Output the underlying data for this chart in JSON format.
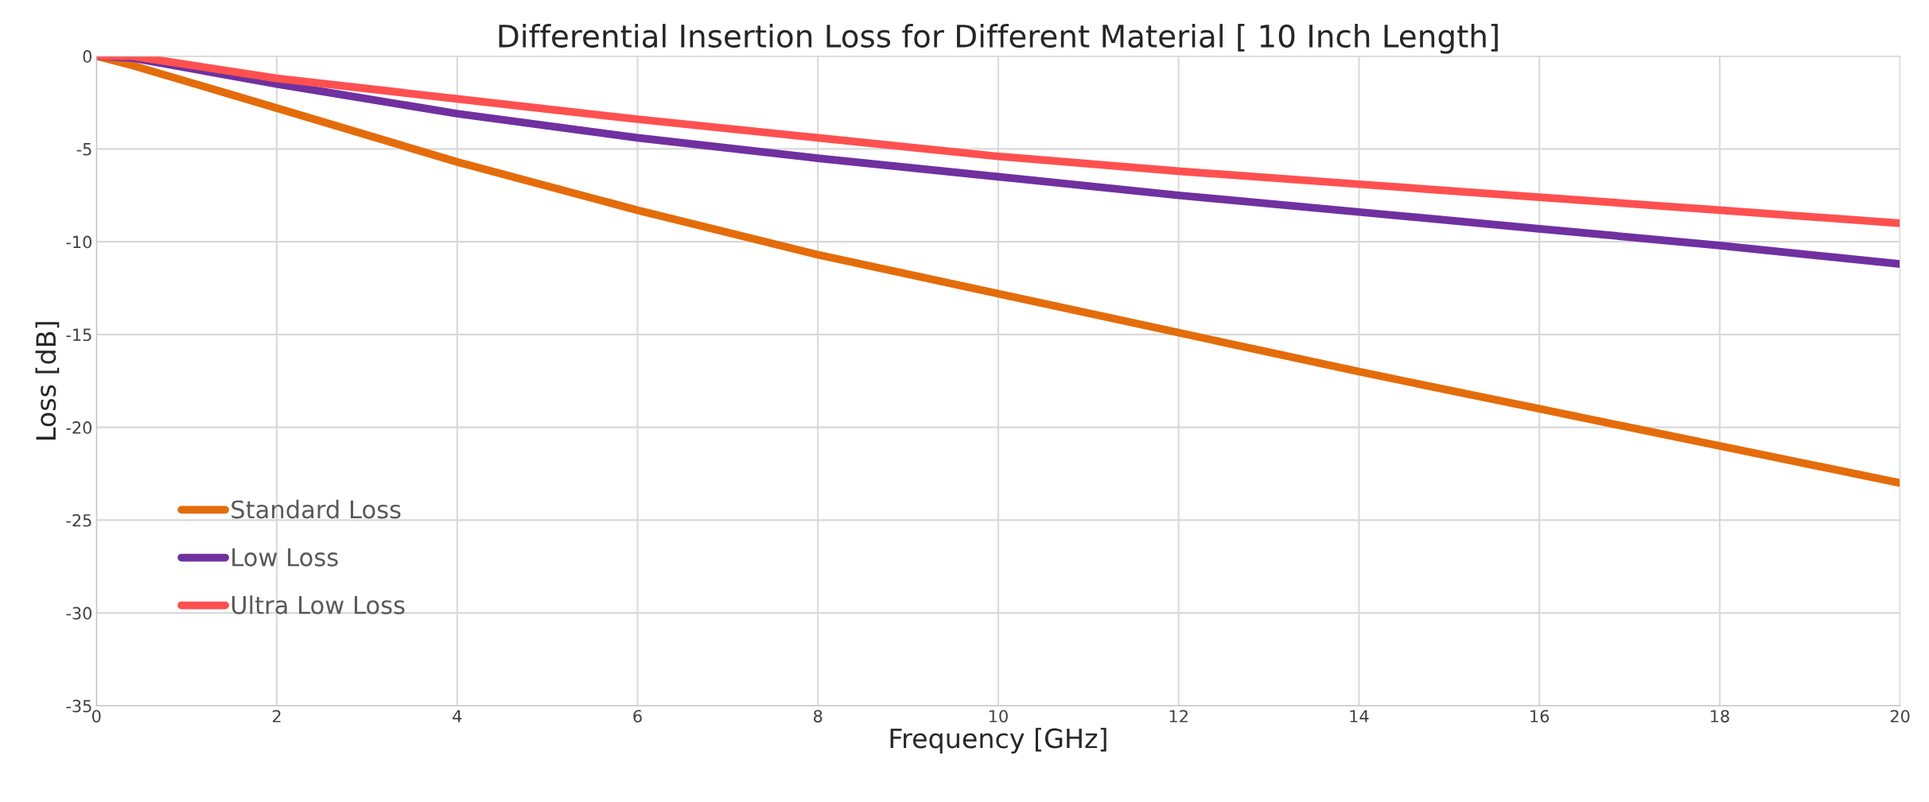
{
  "chart_data": {
    "type": "line",
    "title": "Differential Insertion Loss for Different Material [ 10 Inch Length]",
    "xlabel": "Frequency [GHz]",
    "ylabel": "Loss [dB]",
    "x": [
      0,
      0.4,
      2,
      4,
      6,
      8,
      10,
      12,
      14,
      16,
      18,
      20
    ],
    "series": [
      {
        "name": "Standard Loss",
        "color": "#e46c0a",
        "values": [
          0,
          -0.5,
          -2.8,
          -5.7,
          -8.3,
          -10.7,
          -12.8,
          -14.9,
          -17.0,
          -19.0,
          -21.0,
          -23.0
        ]
      },
      {
        "name": "Low Loss",
        "color": "#7030a0",
        "values": [
          0,
          -0.1,
          -1.5,
          -3.1,
          -4.4,
          -5.5,
          -6.5,
          -7.5,
          -8.4,
          -9.3,
          -10.2,
          -11.2
        ]
      },
      {
        "name": "Ultra Low Loss",
        "color": "#ff5050",
        "values": [
          0,
          0,
          -1.2,
          -2.3,
          -3.4,
          -4.4,
          -5.4,
          -6.2,
          -6.9,
          -7.6,
          -8.3,
          -9.0
        ]
      }
    ],
    "xlim": [
      0,
      20
    ],
    "xticks": [
      0,
      2,
      4,
      6,
      8,
      10,
      12,
      14,
      16,
      18,
      20
    ],
    "ylim": [
      -35,
      0
    ],
    "yticks": [
      -35,
      -30,
      -25,
      -20,
      -15,
      -10,
      -5,
      0
    ],
    "grid": true,
    "legend": "bottom left",
    "marker": "none",
    "line_style": "solid"
  }
}
